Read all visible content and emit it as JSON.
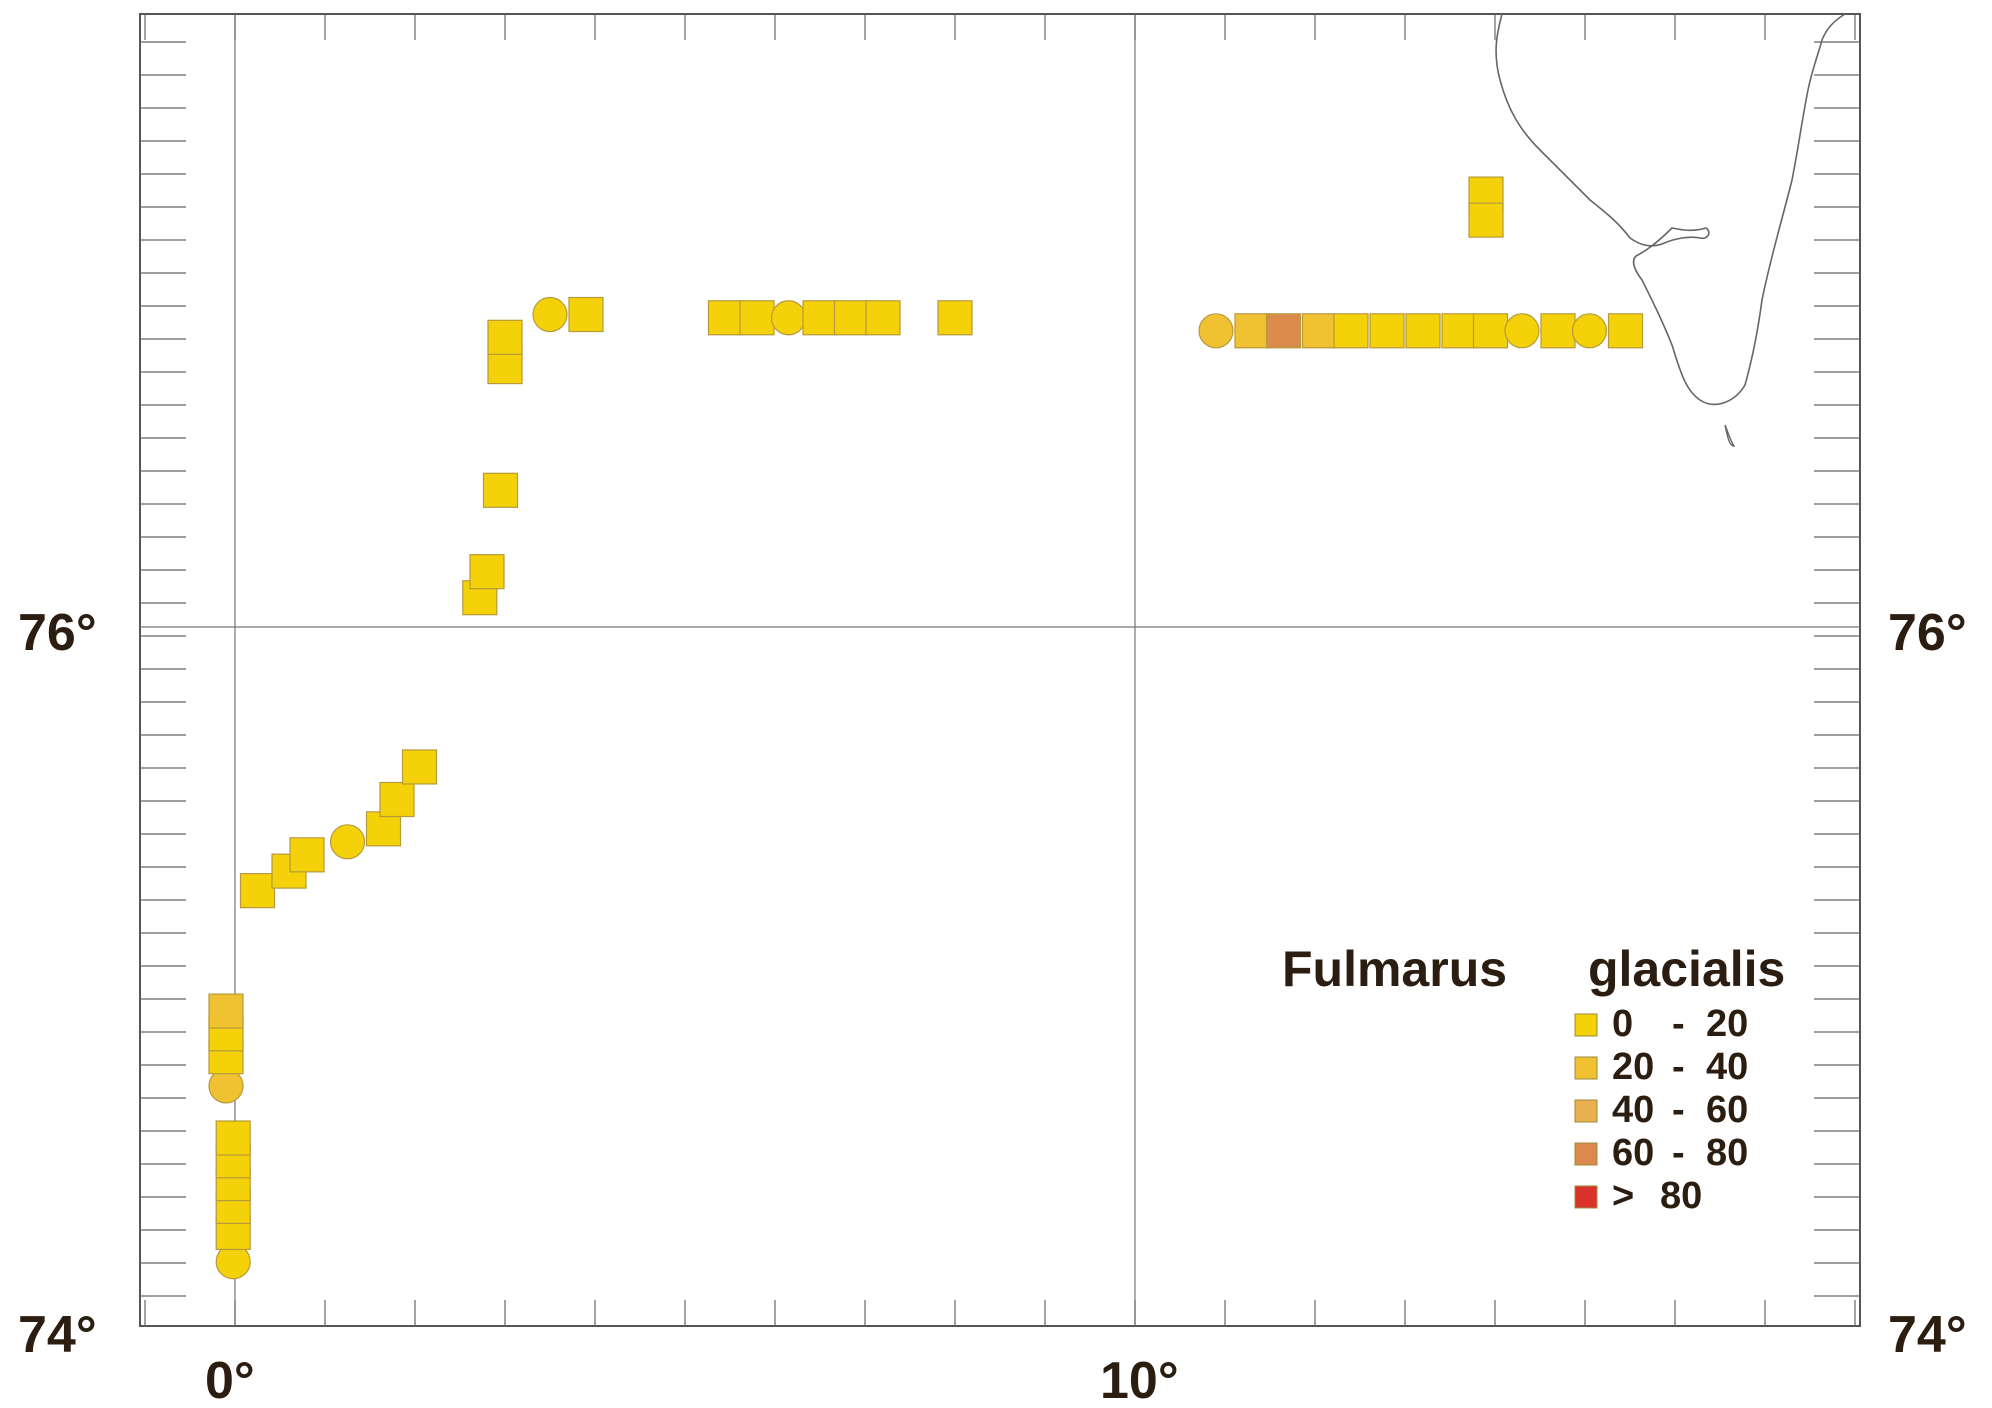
{
  "map": {
    "lat_labels": [
      "76°",
      "74°"
    ],
    "lon_labels": [
      "0°",
      "10°"
    ],
    "lat_range": [
      74,
      77.2
    ],
    "lon_range": [
      -1,
      18
    ],
    "grid_lines": {
      "lat": [
        76
      ],
      "lon": [
        0,
        10
      ]
    }
  },
  "legend": {
    "title_genus": "Fulmarus",
    "title_species": "glacialis",
    "placement": "bottom-right",
    "classes": [
      {
        "label_low": "0",
        "sep": "-",
        "label_high": "20",
        "color": "#f5d10a"
      },
      {
        "label_low": "20",
        "sep": "-",
        "label_high": "40",
        "color": "#f0c232"
      },
      {
        "label_low": "40",
        "sep": "-",
        "label_high": "60",
        "color": "#e8b04e"
      },
      {
        "label_low": "60",
        "sep": "-",
        "label_high": "80",
        "color": "#dc8a4c"
      },
      {
        "label_low": ">",
        "sep": "",
        "label_high": "80",
        "color": "#d8322a"
      }
    ]
  },
  "observations": [
    {
      "lon": -0.02,
      "lat": 74.05,
      "shape": "circle",
      "class": 0
    },
    {
      "lon": -0.02,
      "lat": 74.14,
      "shape": "square",
      "class": 0
    },
    {
      "lon": -0.02,
      "lat": 74.22,
      "shape": "square",
      "class": 0
    },
    {
      "lon": -0.02,
      "lat": 74.29,
      "shape": "square",
      "class": 0
    },
    {
      "lon": -0.02,
      "lat": 74.36,
      "shape": "square",
      "class": 0
    },
    {
      "lon": -0.02,
      "lat": 74.43,
      "shape": "square",
      "class": 0
    },
    {
      "lon": -0.1,
      "lat": 74.59,
      "shape": "circle",
      "class": 1
    },
    {
      "lon": -0.1,
      "lat": 74.68,
      "shape": "square",
      "class": 0
    },
    {
      "lon": -0.1,
      "lat": 74.75,
      "shape": "square",
      "class": 0
    },
    {
      "lon": -0.1,
      "lat": 74.82,
      "shape": "square",
      "class": 1
    },
    {
      "lon": 0.25,
      "lat": 75.19,
      "shape": "square",
      "class": 0
    },
    {
      "lon": 0.6,
      "lat": 75.25,
      "shape": "square",
      "class": 0
    },
    {
      "lon": 0.8,
      "lat": 75.3,
      "shape": "square",
      "class": 0
    },
    {
      "lon": 1.25,
      "lat": 75.34,
      "shape": "circle",
      "class": 0
    },
    {
      "lon": 1.65,
      "lat": 75.38,
      "shape": "square",
      "class": 0
    },
    {
      "lon": 1.8,
      "lat": 75.47,
      "shape": "square",
      "class": 0
    },
    {
      "lon": 2.05,
      "lat": 75.57,
      "shape": "square",
      "class": 0
    },
    {
      "lon": 2.72,
      "lat": 76.09,
      "shape": "square",
      "class": 0
    },
    {
      "lon": 2.8,
      "lat": 76.17,
      "shape": "square",
      "class": 0
    },
    {
      "lon": 2.95,
      "lat": 76.42,
      "shape": "square",
      "class": 0
    },
    {
      "lon": 3.0,
      "lat": 76.8,
      "shape": "square",
      "class": 0
    },
    {
      "lon": 3.0,
      "lat": 76.89,
      "shape": "square",
      "class": 0
    },
    {
      "lon": 3.5,
      "lat": 76.96,
      "shape": "circle",
      "class": 0
    },
    {
      "lon": 3.9,
      "lat": 76.96,
      "shape": "square",
      "class": 0
    },
    {
      "lon": 5.45,
      "lat": 76.95,
      "shape": "square",
      "class": 0
    },
    {
      "lon": 5.8,
      "lat": 76.95,
      "shape": "square",
      "class": 0
    },
    {
      "lon": 6.15,
      "lat": 76.95,
      "shape": "circle",
      "class": 0
    },
    {
      "lon": 6.5,
      "lat": 76.95,
      "shape": "square",
      "class": 0
    },
    {
      "lon": 6.85,
      "lat": 76.95,
      "shape": "square",
      "class": 0
    },
    {
      "lon": 7.2,
      "lat": 76.95,
      "shape": "square",
      "class": 0
    },
    {
      "lon": 8.0,
      "lat": 76.95,
      "shape": "square",
      "class": 0
    },
    {
      "lon": 10.9,
      "lat": 76.91,
      "shape": "circle",
      "class": 1
    },
    {
      "lon": 11.3,
      "lat": 76.91,
      "shape": "square",
      "class": 1
    },
    {
      "lon": 11.65,
      "lat": 76.91,
      "shape": "square",
      "class": 3
    },
    {
      "lon": 12.05,
      "lat": 76.91,
      "shape": "square",
      "class": 1
    },
    {
      "lon": 12.4,
      "lat": 76.91,
      "shape": "square",
      "class": 0
    },
    {
      "lon": 12.8,
      "lat": 76.91,
      "shape": "square",
      "class": 0
    },
    {
      "lon": 13.2,
      "lat": 76.91,
      "shape": "square",
      "class": 0
    },
    {
      "lon": 13.6,
      "lat": 76.91,
      "shape": "square",
      "class": 0
    },
    {
      "lon": 13.95,
      "lat": 76.91,
      "shape": "square",
      "class": 0
    },
    {
      "lon": 14.3,
      "lat": 76.91,
      "shape": "circle",
      "class": 0
    },
    {
      "lon": 14.7,
      "lat": 76.91,
      "shape": "square",
      "class": 0
    },
    {
      "lon": 15.05,
      "lat": 76.91,
      "shape": "circle",
      "class": 0
    },
    {
      "lon": 15.45,
      "lat": 76.91,
      "shape": "square",
      "class": 0
    },
    {
      "lon": 13.9,
      "lat": 77.33,
      "shape": "square",
      "class": 0
    },
    {
      "lon": 13.9,
      "lat": 77.25,
      "shape": "square",
      "class": 0
    }
  ]
}
